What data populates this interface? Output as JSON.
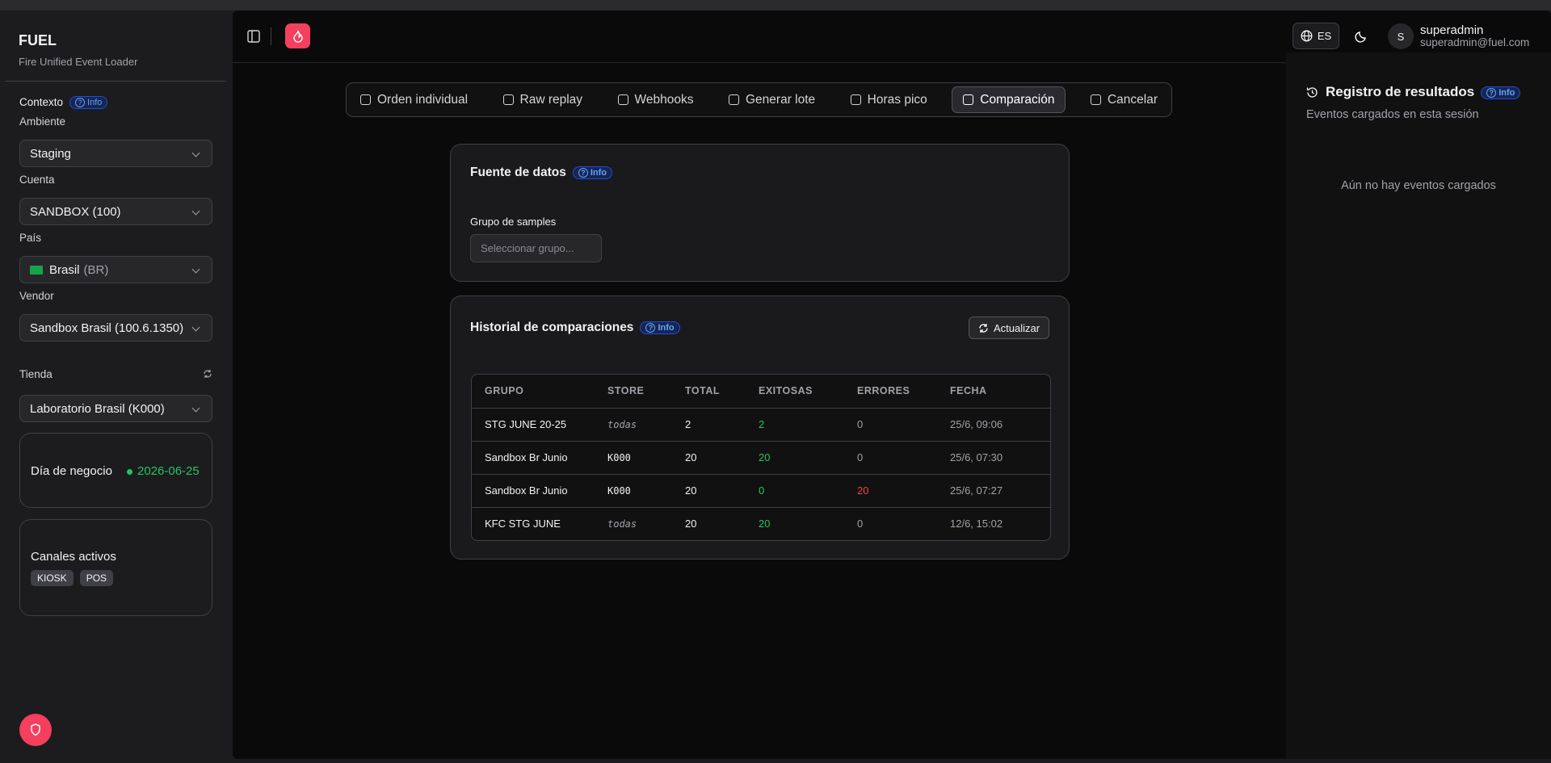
{
  "sidebar": {
    "brand": "FUEL",
    "subtitle": "Fire Unified Event Loader",
    "context_label": "Contexto",
    "context_info": "Info",
    "fields": [
      {
        "label": "Ambiente",
        "value": "Staging"
      },
      {
        "label": "Cuenta",
        "value": "SANDBOX (100)"
      },
      {
        "label": "País",
        "value": "Brasil",
        "suffix": "(BR)"
      },
      {
        "label": "Vendor",
        "value": "Sandbox Brasil (100.6.1350)"
      }
    ],
    "store_label": "Tienda",
    "store": "Laboratorio Brasil (K000)",
    "business_day_label": "Día de negocio",
    "business_day": "2026-06-25",
    "channels_label": "Canales activos",
    "channels": [
      "KIOSK",
      "POS"
    ]
  },
  "header": {
    "lang": "ES",
    "user_initial": "S",
    "user_name": "superadmin",
    "user_email": "superadmin@fuel.com"
  },
  "tabs": [
    "Orden individual",
    "Raw replay",
    "Webhooks",
    "Generar lote",
    "Horas pico",
    "Comparación",
    "Cancelar"
  ],
  "active_tab": 5,
  "source": {
    "title": "Fuente de datos",
    "info": "Info",
    "group_label": "Grupo de samples",
    "placeholder": "Seleccionar grupo..."
  },
  "history": {
    "title": "Historial de comparaciones",
    "info": "Info",
    "refresh": "Actualizar",
    "columns": [
      "GRUPO",
      "STORE",
      "TOTAL",
      "EXITOSAS",
      "ERRORES",
      "FECHA"
    ],
    "rows": [
      [
        "STG JUNE 20-25",
        "todas",
        "2",
        "2",
        "0",
        "25/6, 09:06"
      ],
      [
        "Sandbox Br Junio",
        "K000",
        "20",
        "20",
        "0",
        "25/6, 07:30"
      ],
      [
        "Sandbox Br Junio",
        "K000",
        "20",
        "0",
        "20",
        "25/6, 07:27"
      ],
      [
        "KFC STG JUNE",
        "todas",
        "20",
        "20",
        "0",
        "12/6, 15:02"
      ]
    ]
  },
  "results": {
    "title": "Registro de resultados",
    "info": "Info",
    "subtitle": "Eventos cargados en esta sesión",
    "empty": "Aún no hay eventos cargados"
  }
}
